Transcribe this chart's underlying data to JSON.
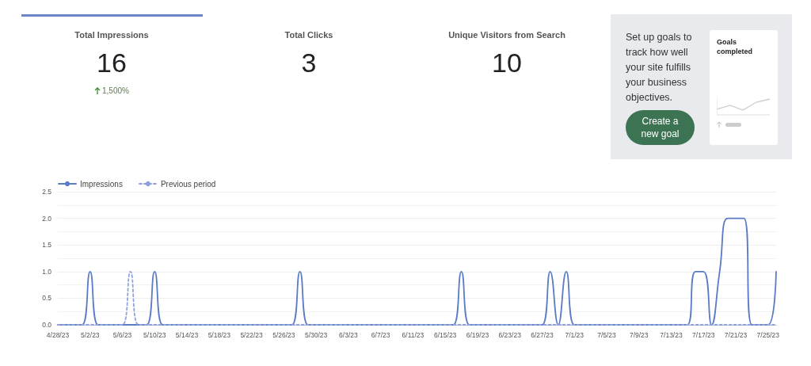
{
  "chart_data": [
    {
      "type": "other",
      "categories": [
        "Total Impressions",
        "Total Clicks",
        "Unique Visitors from Search"
      ],
      "values": [
        16,
        3,
        10
      ],
      "data_labels": true,
      "annotations": [
        "1,500%"
      ]
    },
    {
      "type": "other",
      "annotations": [
        "Set up goals to track how well your site fulfills your business objectives.",
        "Create a new goal",
        "Goals completed"
      ]
    },
    {
      "type": "line",
      "categories": [
        "4/28/23",
        null,
        null,
        null,
        "5/2/23",
        null,
        null,
        null,
        "5/6/23",
        null,
        null,
        null,
        "5/10/23",
        null,
        null,
        null,
        "5/14/23",
        null,
        null,
        null,
        "5/18/23",
        null,
        null,
        null,
        "5/22/23",
        null,
        null,
        null,
        "5/26/23",
        null,
        null,
        null,
        "5/30/23",
        null,
        null,
        null,
        "6/3/23",
        null,
        null,
        null,
        "6/7/23",
        null,
        null,
        null,
        "6/11/23",
        null,
        null,
        null,
        "6/15/23",
        null,
        null,
        null,
        "6/19/23",
        null,
        null,
        null,
        "6/23/23",
        null,
        null,
        null,
        "6/27/23",
        null,
        null,
        null,
        "7/1/23",
        null,
        null,
        null,
        "7/5/23",
        null,
        null,
        null,
        "7/9/23",
        null,
        null,
        null,
        "7/13/23",
        null,
        null,
        null,
        "7/17/23",
        null,
        null,
        null,
        "7/21/23",
        null,
        null,
        null,
        "7/25/23",
        null
      ],
      "series": [
        {
          "name": "Impressions",
          "color": "#5b7bc4",
          "line_style": "solid",
          "values": [
            0,
            0,
            0,
            0,
            1,
            0,
            0,
            0,
            0,
            0,
            0,
            0,
            1,
            0,
            0,
            0,
            0,
            0,
            0,
            0,
            0,
            0,
            0,
            0,
            0,
            0,
            0,
            0,
            0,
            0,
            1,
            0,
            0,
            0,
            0,
            0,
            0,
            0,
            0,
            0,
            0,
            0,
            0,
            0,
            0,
            0,
            0,
            0,
            0,
            0,
            1,
            0,
            0,
            0,
            0,
            0,
            0,
            0,
            0,
            0,
            0,
            1,
            0,
            1,
            0,
            0,
            0,
            0,
            0,
            0,
            0,
            0,
            0,
            0,
            0,
            0,
            0,
            0,
            0,
            1,
            1,
            0,
            1,
            2,
            2,
            2,
            0,
            0,
            0,
            1
          ]
        },
        {
          "name": "Previous period",
          "color": "#8fa3d8",
          "line_style": "dashed",
          "values": [
            0,
            0,
            0,
            0,
            0,
            0,
            0,
            0,
            0,
            1,
            0,
            0,
            0,
            0,
            0,
            0,
            0,
            0,
            0,
            0,
            0,
            0,
            0,
            0,
            0,
            0,
            0,
            0,
            0,
            0,
            0,
            0,
            0,
            0,
            0,
            0,
            0,
            0,
            0,
            0,
            0,
            0,
            0,
            0,
            0,
            0,
            0,
            0,
            0,
            0,
            0,
            0,
            0,
            0,
            0,
            0,
            0,
            0,
            0,
            0,
            0,
            0,
            0,
            0,
            0,
            0,
            0,
            0,
            0,
            0,
            0,
            0,
            0,
            0,
            0,
            0,
            0,
            0,
            0,
            0,
            0,
            0,
            0,
            0,
            0,
            0,
            0,
            0,
            0,
            0
          ]
        }
      ],
      "ylim": [
        0,
        2.5
      ],
      "yticks": [
        {
          "value": 0,
          "label": "0.0"
        },
        {
          "value": 0.5,
          "label": "0.5"
        },
        {
          "value": 1,
          "label": "1.0"
        },
        {
          "value": 1.5,
          "label": "1.5"
        },
        {
          "value": 2,
          "label": "2.0"
        },
        {
          "value": 2.5,
          "label": "2.5"
        }
      ],
      "grid": "y",
      "legend": "top left",
      "marker": "none"
    }
  ]
}
